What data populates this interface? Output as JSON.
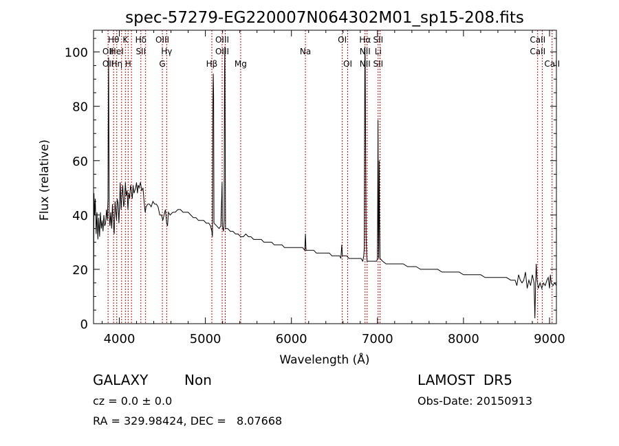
{
  "chart_data": {
    "type": "line",
    "title": "spec-57279-EG220007N064302M01_sp15-208.fits",
    "xlabel": "Wavelength (Å)",
    "ylabel": "Flux (relative)",
    "xlim": [
      3700,
      9080
    ],
    "ylim": [
      0,
      108
    ],
    "x_ticks": [
      4000,
      5000,
      6000,
      7000,
      8000,
      9000
    ],
    "y_ticks": [
      0,
      20,
      40,
      60,
      80,
      100
    ],
    "grid": false,
    "series": [
      {
        "color": "#000000",
        "points": [
          [
            3700,
            2
          ],
          [
            3705,
            48
          ],
          [
            3712,
            40
          ],
          [
            3720,
            46
          ],
          [
            3730,
            33
          ],
          [
            3740,
            41
          ],
          [
            3750,
            31
          ],
          [
            3760,
            39
          ],
          [
            3770,
            32
          ],
          [
            3780,
            41
          ],
          [
            3790,
            35
          ],
          [
            3800,
            38
          ],
          [
            3810,
            34
          ],
          [
            3820,
            40
          ],
          [
            3830,
            36
          ],
          [
            3840,
            37
          ],
          [
            3850,
            42
          ],
          [
            3860,
            38
          ],
          [
            3868,
            46
          ],
          [
            3872,
            83
          ],
          [
            3875,
            98
          ],
          [
            3878,
            70
          ],
          [
            3882,
            40
          ],
          [
            3890,
            36
          ],
          [
            3900,
            41
          ],
          [
            3910,
            35
          ],
          [
            3920,
            44
          ],
          [
            3930,
            37
          ],
          [
            3940,
            33
          ],
          [
            3950,
            45
          ],
          [
            3960,
            41
          ],
          [
            3968,
            38
          ],
          [
            3975,
            46
          ],
          [
            3985,
            44
          ],
          [
            3995,
            37
          ],
          [
            4010,
            52
          ],
          [
            4020,
            42
          ],
          [
            4030,
            47
          ],
          [
            4040,
            51
          ],
          [
            4050,
            43
          ],
          [
            4060,
            45
          ],
          [
            4070,
            52
          ],
          [
            4080,
            47
          ],
          [
            4090,
            49
          ],
          [
            4100,
            42
          ],
          [
            4110,
            48
          ],
          [
            4120,
            46
          ],
          [
            4130,
            51
          ],
          [
            4140,
            49
          ],
          [
            4150,
            46
          ],
          [
            4160,
            51
          ],
          [
            4170,
            48
          ],
          [
            4180,
            49
          ],
          [
            4190,
            50
          ],
          [
            4200,
            52
          ],
          [
            4210,
            48
          ],
          [
            4220,
            51
          ],
          [
            4230,
            50
          ],
          [
            4245,
            52
          ],
          [
            4260,
            49
          ],
          [
            4275,
            50
          ],
          [
            4290,
            44
          ],
          [
            4300,
            41
          ],
          [
            4310,
            43
          ],
          [
            4330,
            44
          ],
          [
            4350,
            44
          ],
          [
            4370,
            43
          ],
          [
            4390,
            45
          ],
          [
            4410,
            44
          ],
          [
            4430,
            44
          ],
          [
            4450,
            43
          ],
          [
            4470,
            40
          ],
          [
            4490,
            40
          ],
          [
            4505,
            38
          ],
          [
            4520,
            40
          ],
          [
            4535,
            42
          ],
          [
            4550,
            37
          ],
          [
            4560,
            36
          ],
          [
            4570,
            41
          ],
          [
            4590,
            40
          ],
          [
            4620,
            41
          ],
          [
            4650,
            41
          ],
          [
            4680,
            42
          ],
          [
            4710,
            42
          ],
          [
            4740,
            41
          ],
          [
            4770,
            41
          ],
          [
            4800,
            41
          ],
          [
            4830,
            40
          ],
          [
            4860,
            39
          ],
          [
            4890,
            39
          ],
          [
            4920,
            38
          ],
          [
            4950,
            38
          ],
          [
            4980,
            38
          ],
          [
            5010,
            37
          ],
          [
            5040,
            37
          ],
          [
            5060,
            36
          ],
          [
            5075,
            34
          ],
          [
            5082,
            32
          ],
          [
            5088,
            82
          ],
          [
            5092,
            92
          ],
          [
            5096,
            84
          ],
          [
            5100,
            37
          ],
          [
            5130,
            36
          ],
          [
            5160,
            35
          ],
          [
            5180,
            36
          ],
          [
            5190,
            47
          ],
          [
            5194,
            52
          ],
          [
            5198,
            36
          ],
          [
            5210,
            34
          ],
          [
            5218,
            38
          ],
          [
            5222,
            90
          ],
          [
            5226,
            102
          ],
          [
            5230,
            70
          ],
          [
            5234,
            35
          ],
          [
            5260,
            35
          ],
          [
            5290,
            34
          ],
          [
            5320,
            34
          ],
          [
            5350,
            33
          ],
          [
            5380,
            33
          ],
          [
            5410,
            32
          ],
          [
            5440,
            32
          ],
          [
            5470,
            33
          ],
          [
            5500,
            32
          ],
          [
            5530,
            32
          ],
          [
            5560,
            31
          ],
          [
            5590,
            31
          ],
          [
            5620,
            31
          ],
          [
            5650,
            31
          ],
          [
            5680,
            30
          ],
          [
            5710,
            30
          ],
          [
            5740,
            30
          ],
          [
            5770,
            30
          ],
          [
            5800,
            29
          ],
          [
            5830,
            29
          ],
          [
            5860,
            29
          ],
          [
            5890,
            29
          ],
          [
            5920,
            28
          ],
          [
            5950,
            28
          ],
          [
            5980,
            28
          ],
          [
            6010,
            28
          ],
          [
            6040,
            28
          ],
          [
            6070,
            28
          ],
          [
            6100,
            28
          ],
          [
            6130,
            28
          ],
          [
            6155,
            27
          ],
          [
            6163,
            33
          ],
          [
            6170,
            27
          ],
          [
            6200,
            27
          ],
          [
            6230,
            27
          ],
          [
            6260,
            27
          ],
          [
            6290,
            26
          ],
          [
            6320,
            26
          ],
          [
            6350,
            26
          ],
          [
            6380,
            26
          ],
          [
            6410,
            26
          ],
          [
            6440,
            26
          ],
          [
            6470,
            25
          ],
          [
            6500,
            25
          ],
          [
            6530,
            25
          ],
          [
            6560,
            25
          ],
          [
            6575,
            24
          ],
          [
            6585,
            29
          ],
          [
            6592,
            25
          ],
          [
            6610,
            25
          ],
          [
            6640,
            25
          ],
          [
            6670,
            24
          ],
          [
            6700,
            24
          ],
          [
            6730,
            24
          ],
          [
            6760,
            24
          ],
          [
            6790,
            24
          ],
          [
            6810,
            24
          ],
          [
            6830,
            23
          ],
          [
            6840,
            25
          ],
          [
            6847,
            28
          ],
          [
            6850,
            60
          ],
          [
            6854,
            102
          ],
          [
            6858,
            97
          ],
          [
            6862,
            70
          ],
          [
            6868,
            32
          ],
          [
            6875,
            25
          ],
          [
            6880,
            23
          ],
          [
            6900,
            23
          ],
          [
            6930,
            23
          ],
          [
            6960,
            23
          ],
          [
            6990,
            23
          ],
          [
            7000,
            24
          ],
          [
            7006,
            75
          ],
          [
            7010,
            35
          ],
          [
            7015,
            24
          ],
          [
            7020,
            60
          ],
          [
            7024,
            40
          ],
          [
            7030,
            24
          ],
          [
            7060,
            23
          ],
          [
            7100,
            22
          ],
          [
            7150,
            22
          ],
          [
            7200,
            22
          ],
          [
            7250,
            22
          ],
          [
            7300,
            22
          ],
          [
            7350,
            21
          ],
          [
            7400,
            21
          ],
          [
            7450,
            21
          ],
          [
            7500,
            20
          ],
          [
            7550,
            20
          ],
          [
            7600,
            20
          ],
          [
            7650,
            20
          ],
          [
            7700,
            20
          ],
          [
            7750,
            19
          ],
          [
            7800,
            19
          ],
          [
            7850,
            19
          ],
          [
            7900,
            19
          ],
          [
            7950,
            19
          ],
          [
            8000,
            18
          ],
          [
            8050,
            18
          ],
          [
            8100,
            18
          ],
          [
            8150,
            18
          ],
          [
            8200,
            18
          ],
          [
            8250,
            17
          ],
          [
            8300,
            17
          ],
          [
            8350,
            17
          ],
          [
            8400,
            17
          ],
          [
            8450,
            17
          ],
          [
            8500,
            17
          ],
          [
            8550,
            16
          ],
          [
            8600,
            16
          ],
          [
            8620,
            14
          ],
          [
            8640,
            18
          ],
          [
            8660,
            16
          ],
          [
            8680,
            15
          ],
          [
            8700,
            16
          ],
          [
            8720,
            19
          ],
          [
            8740,
            13
          ],
          [
            8760,
            16
          ],
          [
            8780,
            14
          ],
          [
            8800,
            18
          ],
          [
            8820,
            15
          ],
          [
            8830,
            2
          ],
          [
            8838,
            14
          ],
          [
            8845,
            22
          ],
          [
            8855,
            16
          ],
          [
            8870,
            13
          ],
          [
            8890,
            15
          ],
          [
            8910,
            13
          ],
          [
            8930,
            15
          ],
          [
            8950,
            14
          ],
          [
            8970,
            16
          ],
          [
            8985,
            17
          ],
          [
            9000,
            13
          ],
          [
            9010,
            18
          ],
          [
            9020,
            15
          ],
          [
            9040,
            14
          ],
          [
            9060,
            15
          ],
          [
            9080,
            14
          ]
        ]
      }
    ],
    "annotations": {
      "line_color": "#cc0000",
      "lines": [
        {
          "x": 3869,
          "row1": "",
          "row2": "OII",
          "row3": "OII"
        },
        {
          "x": 3933,
          "row1": "Hθ",
          "row2": "",
          "row3": ""
        },
        {
          "x": 3970,
          "row1": "",
          "row2": "HeI",
          "row3": "Hη"
        },
        {
          "x": 4026,
          "row1": "",
          "row2": "",
          "row3": ""
        },
        {
          "x": 4070,
          "row1": "K",
          "row2": "",
          "row3": ""
        },
        {
          "x": 4102,
          "row1": "",
          "row2": "",
          "row3": "H"
        },
        {
          "x": 4141,
          "row1": "",
          "row2": "",
          "row3": ""
        },
        {
          "x": 4250,
          "row1": "Hδ",
          "row2": "SII",
          "row3": ""
        },
        {
          "x": 4305,
          "row1": "",
          "row2": "",
          "row3": ""
        },
        {
          "x": 4500,
          "row1": "OIII",
          "row2": "",
          "row3": "G"
        },
        {
          "x": 4550,
          "row1": "",
          "row2": "Hγ",
          "row3": ""
        },
        {
          "x": 5075,
          "row1": "",
          "row2": "",
          "row3": "Hβ"
        },
        {
          "x": 5195,
          "row1": "OIII",
          "row2": "OIII",
          "row3": ""
        },
        {
          "x": 5231,
          "row1": "",
          "row2": "",
          "row3": ""
        },
        {
          "x": 5410,
          "row1": "",
          "row2": "",
          "row3": "Mg"
        },
        {
          "x": 6163,
          "row1": "",
          "row2": "Na",
          "row3": ""
        },
        {
          "x": 6591,
          "row1": "OI",
          "row2": "",
          "row3": ""
        },
        {
          "x": 6654,
          "row1": "",
          "row2": "",
          "row3": "OI"
        },
        {
          "x": 6856,
          "row1": "Hα",
          "row2": "NII",
          "row3": "NII"
        },
        {
          "x": 6880,
          "row1": "",
          "row2": "",
          "row3": ""
        },
        {
          "x": 7008,
          "row1": "SII",
          "row2": "Li",
          "row3": "SII"
        },
        {
          "x": 7030,
          "row1": "",
          "row2": "",
          "row3": ""
        },
        {
          "x": 8862,
          "row1": "CaII",
          "row2": "CaII",
          "row3": ""
        },
        {
          "x": 8915,
          "row1": "",
          "row2": "",
          "row3": ""
        },
        {
          "x": 9030,
          "row1": "",
          "row2": "",
          "row3": "CaII"
        }
      ]
    }
  },
  "info": {
    "object_class": "GALAXY",
    "subclass": "Non",
    "survey": "LAMOST  DR5",
    "cz": "cz = 0.0 ± 0.0",
    "obs_date": "Obs-Date: 20150913",
    "coords": "RA = 329.98424, DEC =   8.07668"
  }
}
